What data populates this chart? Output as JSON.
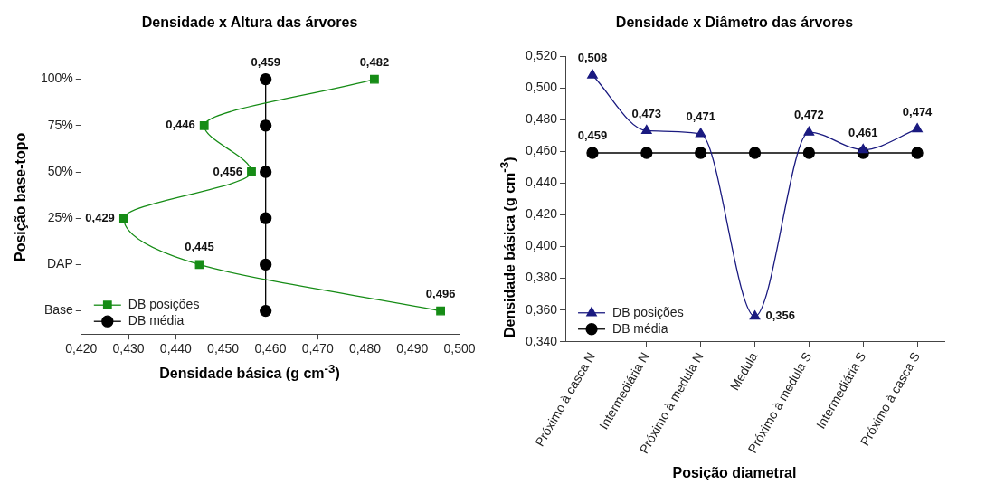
{
  "chart_data": [
    {
      "type": "line",
      "title": "Densidade x Altura das árvores",
      "xlabel": "Densidade básica (g cm$^{-3}$)",
      "ylabel": "Posição base-topo",
      "orientation": "horizontal",
      "categories": [
        "100%",
        "75%",
        "50%",
        "25%",
        "DAP",
        "Base"
      ],
      "series": [
        {
          "name": "DB posições",
          "color": "#168c16",
          "marker": "square",
          "values": [
            0.482,
            0.446,
            0.456,
            0.429,
            0.445,
            0.496
          ],
          "value_labels": [
            "0,482",
            "0,446",
            "0,456",
            "0,429",
            "0,445",
            "0,496"
          ]
        },
        {
          "name": "DB média",
          "color": "#000000",
          "marker": "circle",
          "values": [
            0.459,
            0.459,
            0.459,
            0.459,
            0.459,
            0.459
          ],
          "value_labels": [
            "0,459",
            null,
            null,
            null,
            null,
            null
          ]
        }
      ],
      "xlim": [
        0.42,
        0.5
      ],
      "xticks": [
        {
          "value": 0.42,
          "label": "0,420"
        },
        {
          "value": 0.43,
          "label": "0,430"
        },
        {
          "value": 0.44,
          "label": "0,440"
        },
        {
          "value": 0.45,
          "label": "0,450"
        },
        {
          "value": 0.46,
          "label": "0,460"
        },
        {
          "value": 0.47,
          "label": "0,470"
        },
        {
          "value": 0.48,
          "label": "0,480"
        },
        {
          "value": 0.49,
          "label": "0,490"
        },
        {
          "value": 0.5,
          "label": "0,500"
        }
      ],
      "grid": false,
      "legend": "bottom left"
    },
    {
      "type": "line",
      "title": "Densidade x Diâmetro das árvores",
      "xlabel": "Posição diametral",
      "ylabel": "Densidade básica (g cm$^{-3}$)",
      "categories": [
        "Próximo à casca N",
        "Intermediária N",
        "Próximo à medula N",
        "Medula",
        "Próximo à medula S",
        "Intermediária S",
        "Próximo à casca S"
      ],
      "series": [
        {
          "name": "DB posições",
          "color": "#1a1a80",
          "marker": "triangle",
          "values": [
            0.508,
            0.473,
            0.471,
            0.356,
            0.472,
            0.461,
            0.474
          ],
          "value_labels": [
            "0,508",
            "0,473",
            "0,471",
            "0,356",
            "0,472",
            "0,461",
            "0,474"
          ]
        },
        {
          "name": "DB média",
          "color": "#000000",
          "marker": "circle",
          "values": [
            0.459,
            0.459,
            0.459,
            0.459,
            0.459,
            0.459,
            0.459
          ],
          "value_labels": [
            "0,459",
            null,
            null,
            null,
            null,
            null,
            null
          ]
        }
      ],
      "ylim": [
        0.34,
        0.52
      ],
      "yticks": [
        {
          "value": 0.34,
          "label": "0,340"
        },
        {
          "value": 0.36,
          "label": "0,360"
        },
        {
          "value": 0.38,
          "label": "0,380"
        },
        {
          "value": 0.4,
          "label": "0,400"
        },
        {
          "value": 0.42,
          "label": "0,420"
        },
        {
          "value": 0.44,
          "label": "0,440"
        },
        {
          "value": 0.46,
          "label": "0,460"
        },
        {
          "value": 0.48,
          "label": "0,480"
        },
        {
          "value": 0.5,
          "label": "0,500"
        },
        {
          "value": 0.52,
          "label": "0,520"
        }
      ],
      "grid": false,
      "legend": "bottom left"
    }
  ]
}
